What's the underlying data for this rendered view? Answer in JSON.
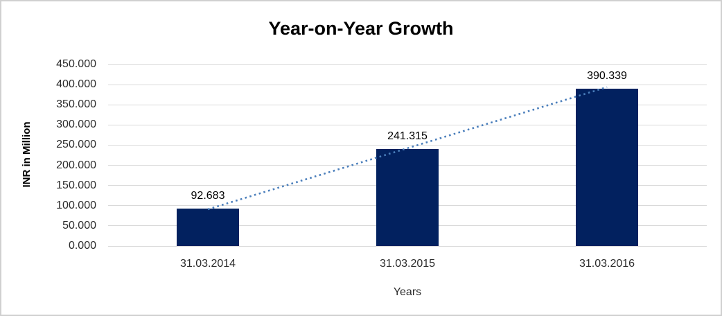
{
  "chart_data": {
    "type": "bar",
    "title": "Year-on-Year Growth",
    "xlabel": "Years",
    "ylabel": "INR in Million",
    "categories": [
      "31.03.2014",
      "31.03.2015",
      "31.03.2016"
    ],
    "values": [
      92.683,
      241.315,
      390.339
    ],
    "data_labels": [
      "92.683",
      "241.315",
      "390.339"
    ],
    "ylim": [
      0,
      450
    ],
    "ytick_step": 50,
    "ytick_labels": [
      "450.000",
      "400.000",
      "350.000",
      "300.000",
      "250.000",
      "200.000",
      "150.000",
      "100.000",
      "50.000",
      "0.000"
    ],
    "grid": "horizontal",
    "legend": "none",
    "trendline": {
      "style": "dotted",
      "from_category_index": 0,
      "to_category_index": 2
    },
    "colors": {
      "bar": "#02215f",
      "trendline": "#4a7ebb",
      "gridline": "#d9d9d9",
      "frame_border": "#d0d0d0",
      "background": "#ffffff",
      "text": "#000000",
      "tick_text": "#2b2b2b"
    }
  }
}
